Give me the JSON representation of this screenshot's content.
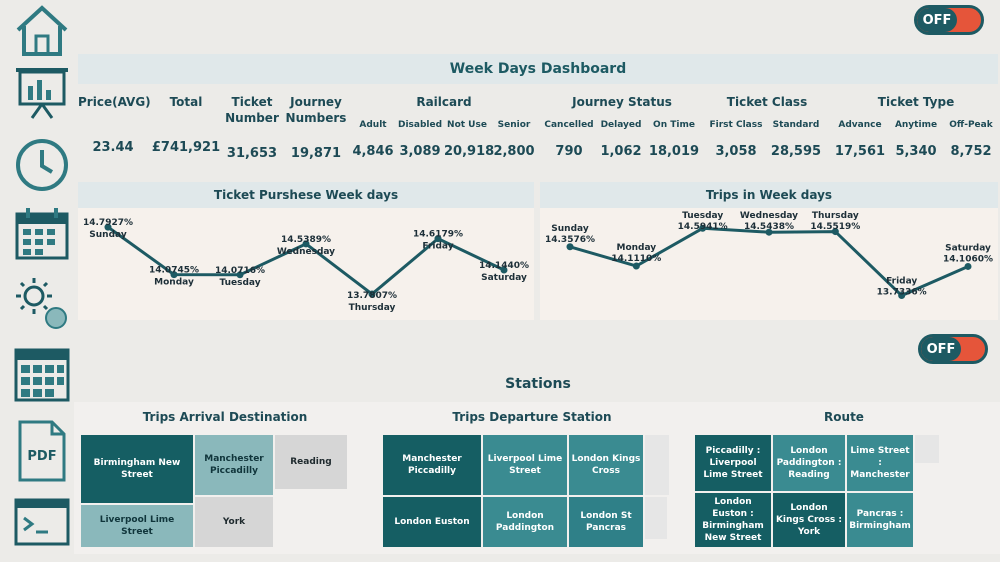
{
  "toggles": {
    "top": "OFF",
    "stations": "OFF"
  },
  "sidebar_icons": [
    "home-icon",
    "presentation-icon",
    "clock-icon",
    "calendar-icon",
    "weather-icon",
    "calendar-grid-icon",
    "pdf-icon",
    "terminal-icon"
  ],
  "pdf_label": "PDF",
  "dashboard": {
    "title": "Week Days Dashboard",
    "kpis": {
      "price": {
        "label": "Price(AVG)",
        "value": "23.44"
      },
      "total": {
        "label": "Total",
        "value": "£741,921"
      },
      "ticket_number": {
        "label": "Ticket Number",
        "value": "31,653"
      },
      "journey_numbers": {
        "label": "Journey Numbers",
        "value": "19,871"
      },
      "railcard": {
        "label": "Railcard",
        "items": [
          {
            "label": "Adult",
            "value": "4,846"
          },
          {
            "label": "Disabled",
            "value": "3,089"
          },
          {
            "label": "Not Use",
            "value": "20,918"
          },
          {
            "label": "Senior",
            "value": "2,800"
          }
        ]
      },
      "journey_status": {
        "label": "Journey Status",
        "items": [
          {
            "label": "Cancelled",
            "value": "790"
          },
          {
            "label": "Delayed",
            "value": "1,062"
          },
          {
            "label": "On Time",
            "value": "18,019"
          }
        ]
      },
      "ticket_class": {
        "label": "Ticket Class",
        "items": [
          {
            "label": "First Class",
            "value": "3,058"
          },
          {
            "label": "Standard",
            "value": "28,595"
          }
        ]
      },
      "ticket_type": {
        "label": "Ticket Type",
        "items": [
          {
            "label": "Advance",
            "value": "17,561"
          },
          {
            "label": "Anytime",
            "value": "5,340"
          },
          {
            "label": "Off-Peak",
            "value": "8,752"
          }
        ]
      }
    }
  },
  "chart_data": [
    {
      "type": "line",
      "title": "Ticket Purshese Week days",
      "categories": [
        "Sunday",
        "Monday",
        "Tuesday",
        "Wednesday",
        "Thursday",
        "Friday",
        "Saturday"
      ],
      "values": [
        14.7927,
        14.0745,
        14.0716,
        14.5389,
        13.7807,
        14.6179,
        14.144
      ],
      "value_labels": [
        "14.7927%",
        "14.0745%",
        "14.0716%",
        "14.5389%",
        "13.7807%",
        "14.6179%",
        "14.1440%"
      ],
      "ylim": [
        13.6,
        14.9
      ],
      "grid": false,
      "color": "#1d5a63"
    },
    {
      "type": "line",
      "title": "Trips in Week days",
      "categories": [
        "Sunday",
        "Monday",
        "Tuesday",
        "Wednesday",
        "Thursday",
        "Friday",
        "Saturday"
      ],
      "values": [
        14.3576,
        14.111,
        14.5941,
        14.5438,
        14.5519,
        13.7336,
        14.106
      ],
      "value_labels": [
        "14.3576%",
        "14.1110%",
        "14.5941%",
        "14.5438%",
        "14.5519%",
        "13.7336%",
        "14.1060%"
      ],
      "ylim": [
        13.6,
        14.7
      ],
      "grid": false,
      "color": "#1d5a63"
    }
  ],
  "stations": {
    "title": "Stations",
    "arrival": {
      "title": "Trips Arrival Destination",
      "tiles": [
        "Birmingham New Street",
        "Manchester Piccadilly",
        "Reading",
        "Liverpool Lime Street",
        "York"
      ]
    },
    "departure": {
      "title": "Trips Departure Station",
      "tiles": [
        "Manchester Piccadilly",
        "Liverpool Lime Street",
        "London Kings Cross",
        "London Euston",
        "London Paddington",
        "London St Pancras"
      ]
    },
    "route": {
      "title": "Route",
      "tiles": [
        "Piccadilly : Liverpool Lime Street",
        "London Paddington : Reading",
        "Lime Street : Manchester",
        "London Euston : Birmingham New Street",
        "London Kings Cross : York",
        "Pancras : Birmingham"
      ]
    }
  }
}
